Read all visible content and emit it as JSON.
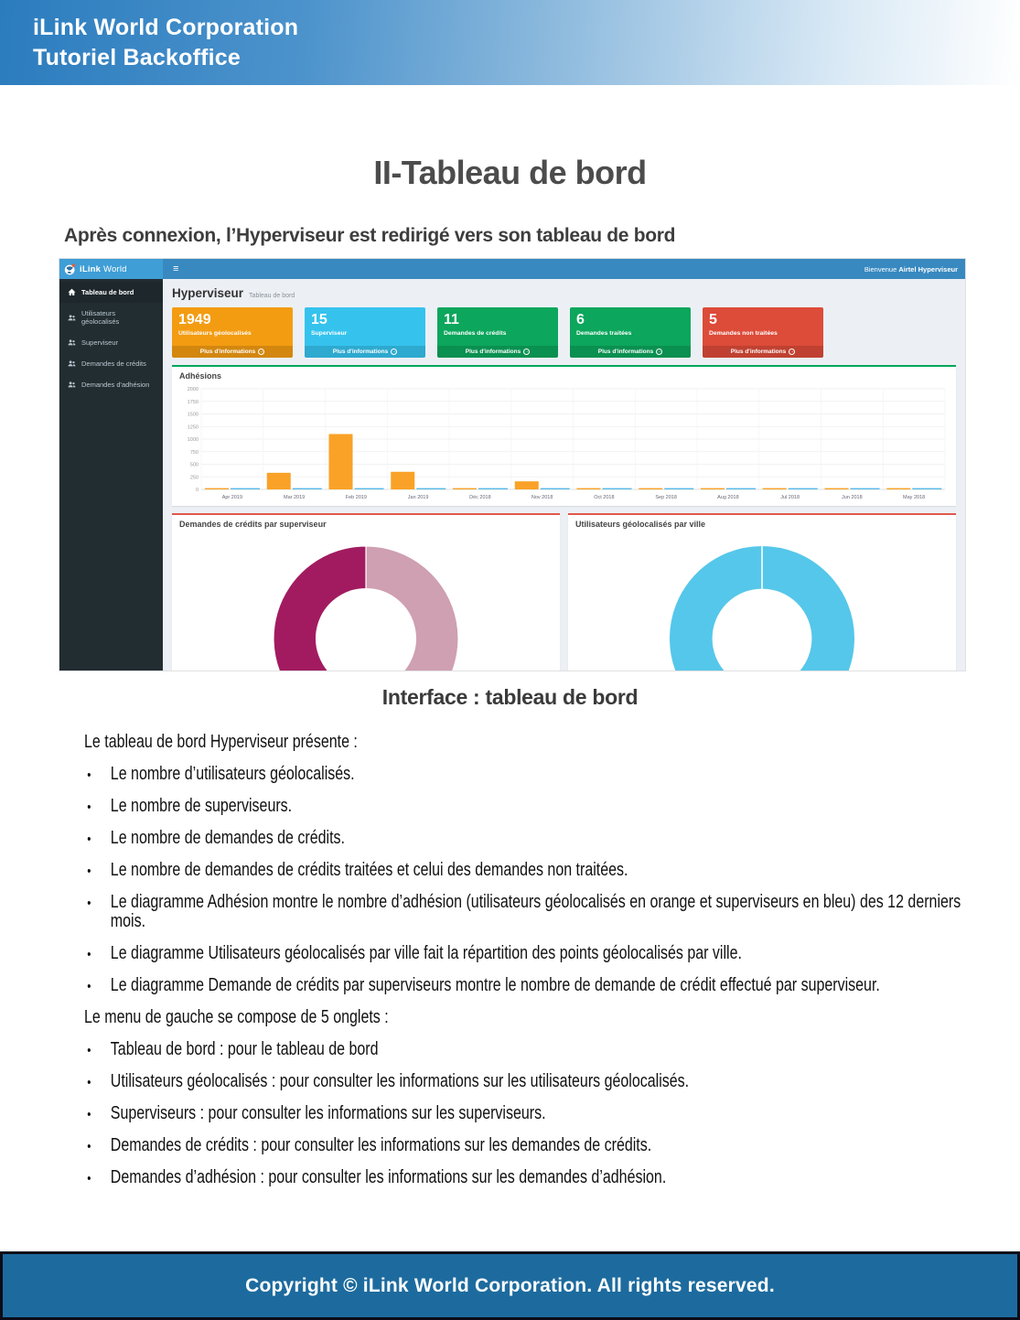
{
  "header": {
    "line1": "iLink World Corporation",
    "line2": "Tutoriel Backoffice"
  },
  "title": "II-Tableau de bord",
  "intro": "Après connexion, l’Hyperviseur est redirigé vers son tableau de bord",
  "icons": {
    "menu": "≡",
    "arrow_circle": "→"
  },
  "dashboard": {
    "brand": {
      "bold": "iLink",
      "regular": "World"
    },
    "topbar": {
      "welcome_prefix": "Bienvenue",
      "welcome_user": "Airtel Hyperviseur"
    },
    "sidebar": {
      "items": [
        {
          "label": "Tableau de bord",
          "icon": "home-icon",
          "active": true
        },
        {
          "label": "Utilisateurs géolocalisés",
          "icon": "users-icon",
          "active": false
        },
        {
          "label": "Superviseur",
          "icon": "users-icon",
          "active": false
        },
        {
          "label": "Demandes de crédits",
          "icon": "users-icon",
          "active": false
        },
        {
          "label": "Demandes d'adhésion",
          "icon": "users-icon",
          "active": false
        }
      ]
    },
    "page_heading": {
      "title": "Hyperviseur",
      "subtitle": "Tableau de bord"
    },
    "cards": [
      {
        "value": "1949",
        "label": "Utilisateurs géolocalisés",
        "link": "Plus d'informations",
        "color": "#f39c12"
      },
      {
        "value": "15",
        "label": "Superviseur",
        "link": "Plus d'informations",
        "color": "#35c3ee"
      },
      {
        "value": "11",
        "label": "Demandes de crédits",
        "link": "Plus d'informations",
        "color": "#0ca65c"
      },
      {
        "value": "6",
        "label": "Demandes traitées",
        "link": "Plus d'informations",
        "color": "#0ca65c"
      },
      {
        "value": "5",
        "label": "Demandes non traitées",
        "link": "Plus d'informations",
        "color": "#dd4b39"
      }
    ]
  },
  "chart_data": [
    {
      "type": "bar",
      "title": "Adhésions",
      "categories": [
        "Apr 2019",
        "Mar 2019",
        "Feb 2019",
        "Jan 2019",
        "Déc 2018",
        "Nov 2018",
        "Oct 2018",
        "Sep 2018",
        "Aug 2018",
        "Jul 2018",
        "Jun 2018",
        "May 2018"
      ],
      "series": [
        {
          "name": "Utilisateurs géolocalisés",
          "color": "#f9a227",
          "values": [
            12,
            330,
            1100,
            350,
            18,
            160,
            15,
            15,
            15,
            15,
            15,
            15
          ]
        },
        {
          "name": "Superviseurs",
          "color": "#57b8e6",
          "values": [
            10,
            12,
            14,
            18,
            12,
            12,
            14,
            14,
            14,
            12,
            12,
            12
          ]
        }
      ],
      "xlabel": "",
      "ylabel": "",
      "ylim": [
        0,
        2000
      ],
      "yticks": [
        0,
        250,
        500,
        750,
        1000,
        1250,
        1500,
        1750,
        2000
      ],
      "grid": true,
      "legend": "none"
    },
    {
      "type": "donut",
      "title": "Demandes de crédits par superviseur",
      "values": [
        44,
        15,
        41
      ],
      "colors": [
        "#cf9fb2",
        "#d63353",
        "#a21b60"
      ],
      "unit": "percent",
      "legend": "none"
    },
    {
      "type": "donut",
      "title": "Utilisateurs géolocalisés par ville",
      "values": [
        100
      ],
      "colors": [
        "#55c7ea"
      ],
      "unit": "percent",
      "legend": "none"
    }
  ],
  "caption": "Interface : tableau de bord",
  "body": {
    "intro1": "Le tableau de bord Hyperviseur présente :",
    "list1": [
      "Le nombre d’utilisateurs géolocalisés.",
      "Le nombre de superviseurs.",
      "Le nombre de demandes de crédits.",
      "Le nombre de demandes de crédits traitées et celui des demandes non traitées.",
      "Le diagramme Adhésion montre le nombre d’adhésion (utilisateurs géolocalisés en orange et superviseurs en bleu) des 12 derniers mois.",
      "Le diagramme Utilisateurs géolocalisés par ville fait la répartition des points géolocalisés par ville.",
      "Le diagramme Demande de crédits par superviseurs montre le nombre de demande de crédit effectué par superviseur."
    ],
    "intro2": "Le menu de gauche se compose de 5 onglets :",
    "list2": [
      "Tableau de bord : pour le tableau de bord",
      "Utilisateurs géolocalisés : pour consulter les informations sur les utilisateurs géolocalisés.",
      "Superviseurs : pour consulter les informations sur les superviseurs.",
      "Demandes de crédits : pour consulter les informations sur les demandes de crédits.",
      "Demandes d’adhésion : pour consulter les informations sur les demandes d’adhésion."
    ]
  },
  "footer": {
    "text": "Copyright © iLink World Corporation. All rights reserved."
  }
}
